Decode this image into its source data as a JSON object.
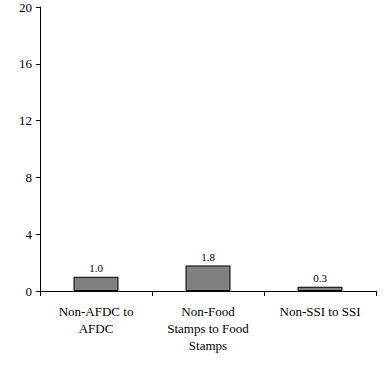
{
  "chart_data": {
    "type": "bar",
    "categories": [
      "Non-AFDC to\nAFDC",
      "Non-Food\nStamps to Food\nStamps",
      "Non-SSI to SSI"
    ],
    "values": [
      1.0,
      1.8,
      0.3
    ],
    "value_labels": [
      "1.0",
      "1.8",
      "0.3"
    ],
    "data_labels": true,
    "color": "#808080",
    "ylim": [
      0,
      20
    ],
    "yticks": [
      0,
      4,
      8,
      12,
      16,
      20
    ],
    "grid": false
  }
}
